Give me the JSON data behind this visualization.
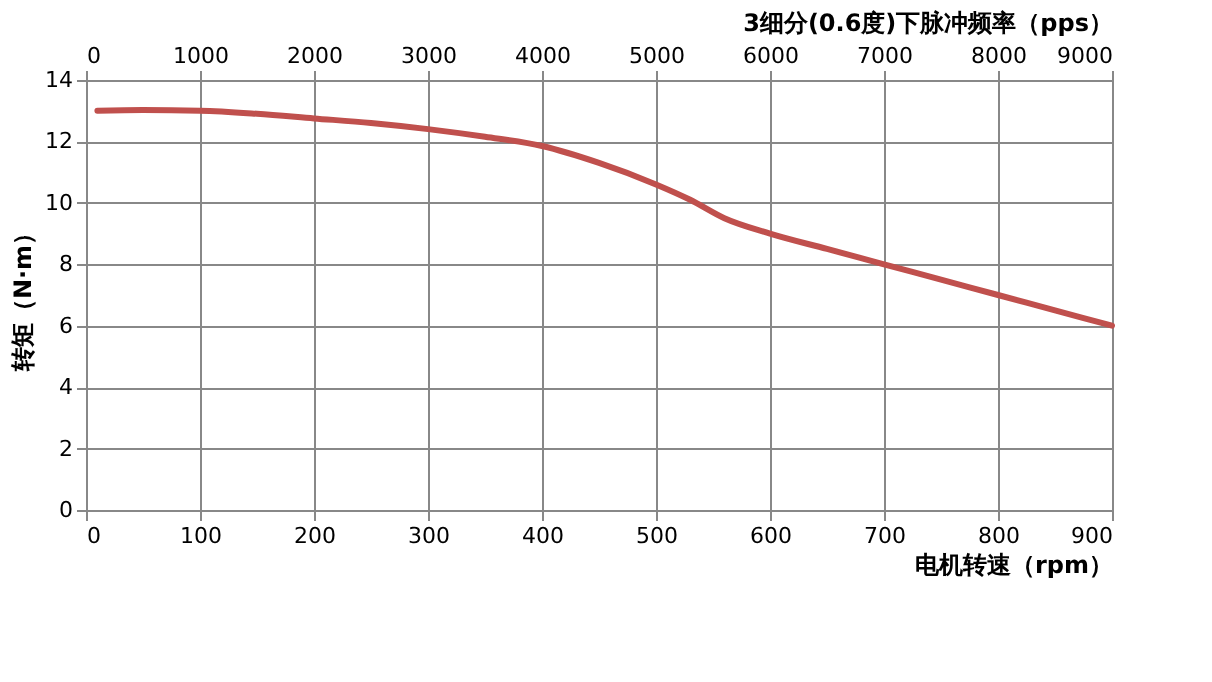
{
  "chart_data": {
    "type": "line",
    "xlabel": "电机转速（rpm）",
    "ylabel": "转矩（N·m）",
    "x2label": "3细分(0.6度)下脉冲频率（pps）",
    "x": [
      10,
      50,
      100,
      150,
      200,
      250,
      300,
      350,
      400,
      450,
      500,
      530,
      560,
      600,
      650,
      700,
      750,
      800,
      850,
      900
    ],
    "series": [
      {
        "color": "#c0504d",
        "values": [
          13.0,
          13.02,
          13.0,
          12.9,
          12.75,
          12.6,
          12.4,
          12.15,
          11.85,
          11.3,
          10.6,
          10.1,
          9.5,
          9.0,
          8.5,
          8.0,
          7.5,
          7.0,
          6.5,
          6.0
        ]
      }
    ],
    "xlim": [
      0,
      900
    ],
    "xticks": [
      0,
      100,
      200,
      300,
      400,
      500,
      600,
      700,
      800,
      900
    ],
    "x2lim": [
      0,
      9000
    ],
    "x2ticks": [
      0,
      1000,
      2000,
      3000,
      4000,
      5000,
      6000,
      7000,
      8000,
      9000
    ],
    "ylim": [
      0,
      14
    ],
    "yticks": [
      0,
      2,
      4,
      6,
      8,
      10,
      12,
      14
    ],
    "grid": true,
    "marker": "none",
    "line_style": "solid"
  }
}
